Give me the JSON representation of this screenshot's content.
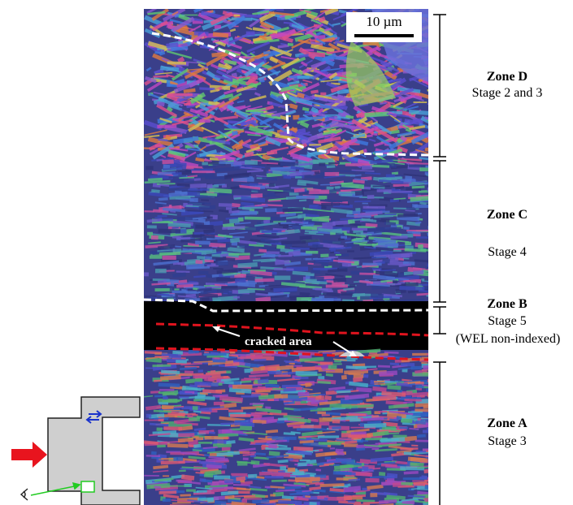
{
  "scale_bar": {
    "label": "10 µm"
  },
  "crack": {
    "label": "cracked area"
  },
  "zones": [
    {
      "title": "Zone D",
      "stage": "Stage 2 and 3"
    },
    {
      "title": "Zone C",
      "stage": "Stage 4"
    },
    {
      "title": "Zone B",
      "stage": "Stage 5",
      "note": "(WEL non-indexed)"
    },
    {
      "title": "Zone A",
      "stage": "Stage 3"
    }
  ],
  "colors": {
    "boundary_white": "#ffffff",
    "boundary_red": "#e0141e",
    "arrow_red": "#e8141e",
    "arrow_green": "#22cc22",
    "shear_arrow_blue": "#1a33cc",
    "specimen_gray": "#cfcfcf"
  }
}
